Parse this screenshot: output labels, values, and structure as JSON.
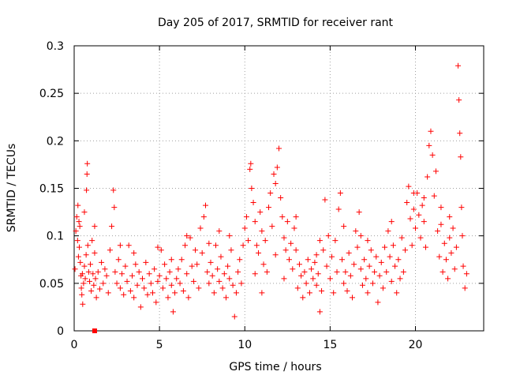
{
  "chart_data": {
    "type": "scatter",
    "title": "Day 205 of 2017, SRMTID for receiver rant",
    "xlabel": "GPS time / hours",
    "ylabel": "SRMTID / TECUs",
    "xlim": [
      0,
      24
    ],
    "ylim": [
      0,
      0.3
    ],
    "xticks": [
      0,
      5,
      10,
      15,
      20
    ],
    "xtick_labels": [
      "0",
      "5",
      "10",
      "15",
      "20"
    ],
    "yticks": [
      0,
      0.05,
      0.1,
      0.15,
      0.2,
      0.25,
      0.3
    ],
    "ytick_labels": [
      "0",
      "0.05",
      "0.1",
      "0.15",
      "0.2",
      "0.25",
      "0.3"
    ],
    "grid": true,
    "marker": "plus",
    "color": "#ff0000",
    "series": [
      {
        "name": "SRMTID",
        "points": [
          [
            0.05,
            0.065
          ],
          [
            0.1,
            0.105
          ],
          [
            0.15,
            0.12
          ],
          [
            0.2,
            0.095
          ],
          [
            0.22,
            0.132
          ],
          [
            0.25,
            0.078
          ],
          [
            0.28,
            0.115
          ],
          [
            0.3,
            0.088
          ],
          [
            0.33,
            0.11
          ],
          [
            0.36,
            0.072
          ],
          [
            0.4,
            0.058
          ],
          [
            0.42,
            0.045
          ],
          [
            0.45,
            0.038
          ],
          [
            0.48,
            0.06
          ],
          [
            0.5,
            0.028
          ],
          [
            0.55,
            0.05
          ],
          [
            0.6,
            0.068
          ],
          [
            0.65,
            0.055
          ],
          [
            0.7,
            0.08
          ],
          [
            0.72,
            0.148
          ],
          [
            0.75,
            0.165
          ],
          [
            0.77,
            0.176
          ],
          [
            0.8,
            0.09
          ],
          [
            0.85,
            0.062
          ],
          [
            0.9,
            0.052
          ],
          [
            0.95,
            0.07
          ],
          [
            1.0,
            0.042
          ],
          [
            1.05,
            0.095
          ],
          [
            1.1,
            0.06
          ],
          [
            1.15,
            0.048
          ],
          [
            1.2,
            0.082
          ],
          [
            1.25,
            0.055
          ],
          [
            1.3,
            0.035
          ],
          [
            1.4,
            0.062
          ],
          [
            1.5,
            0.044
          ],
          [
            1.6,
            0.072
          ],
          [
            1.7,
            0.05
          ],
          [
            1.8,
            0.065
          ],
          [
            1.9,
            0.058
          ],
          [
            2.0,
            0.04
          ],
          [
            2.1,
            0.085
          ],
          [
            2.2,
            0.11
          ],
          [
            2.3,
            0.148
          ],
          [
            2.35,
            0.13
          ],
          [
            2.4,
            0.062
          ],
          [
            2.5,
            0.05
          ],
          [
            2.6,
            0.075
          ],
          [
            2.7,
            0.045
          ],
          [
            2.8,
            0.06
          ],
          [
            2.9,
            0.038
          ],
          [
            3.0,
            0.068
          ],
          [
            3.1,
            0.052
          ],
          [
            3.2,
            0.09
          ],
          [
            3.3,
            0.042
          ],
          [
            3.4,
            0.058
          ],
          [
            3.5,
            0.035
          ],
          [
            3.6,
            0.07
          ],
          [
            3.7,
            0.048
          ],
          [
            3.8,
            0.062
          ],
          [
            3.9,
            0.025
          ],
          [
            4.0,
            0.055
          ],
          [
            4.1,
            0.045
          ],
          [
            4.2,
            0.072
          ],
          [
            4.3,
            0.038
          ],
          [
            4.4,
            0.06
          ],
          [
            4.5,
            0.05
          ],
          [
            4.6,
            0.04
          ],
          [
            4.7,
            0.065
          ],
          [
            4.8,
            0.03
          ],
          [
            4.9,
            0.052
          ],
          [
            5.0,
            0.058
          ],
          [
            5.1,
            0.085
          ],
          [
            5.2,
            0.045
          ],
          [
            5.3,
            0.07
          ],
          [
            5.4,
            0.055
          ],
          [
            5.5,
            0.035
          ],
          [
            5.6,
            0.062
          ],
          [
            5.7,
            0.048
          ],
          [
            5.8,
            0.02
          ],
          [
            5.9,
            0.04
          ],
          [
            6.0,
            0.055
          ],
          [
            6.1,
            0.065
          ],
          [
            6.2,
            0.05
          ],
          [
            6.3,
            0.075
          ],
          [
            6.4,
            0.042
          ],
          [
            6.5,
            0.09
          ],
          [
            6.6,
            0.06
          ],
          [
            6.7,
            0.035
          ],
          [
            6.8,
            0.098
          ],
          [
            6.9,
            0.068
          ],
          [
            7.0,
            0.052
          ],
          [
            7.1,
            0.085
          ],
          [
            7.2,
            0.07
          ],
          [
            7.3,
            0.045
          ],
          [
            7.4,
            0.108
          ],
          [
            7.5,
            0.082
          ],
          [
            7.6,
            0.12
          ],
          [
            7.7,
            0.132
          ],
          [
            7.8,
            0.062
          ],
          [
            7.9,
            0.05
          ],
          [
            8.0,
            0.072
          ],
          [
            8.1,
            0.058
          ],
          [
            8.2,
            0.04
          ],
          [
            8.3,
            0.09
          ],
          [
            8.4,
            0.065
          ],
          [
            8.5,
            0.052
          ],
          [
            8.6,
            0.078
          ],
          [
            8.7,
            0.045
          ],
          [
            8.8,
            0.06
          ],
          [
            8.9,
            0.035
          ],
          [
            9.0,
            0.068
          ],
          [
            9.1,
            0.055
          ],
          [
            9.2,
            0.085
          ],
          [
            9.3,
            0.048
          ],
          [
            9.4,
            0.015
          ],
          [
            9.5,
            0.04
          ],
          [
            9.6,
            0.062
          ],
          [
            9.7,
            0.075
          ],
          [
            9.8,
            0.05
          ],
          [
            9.9,
            0.09
          ],
          [
            10.0,
            0.108
          ],
          [
            10.1,
            0.12
          ],
          [
            10.2,
            0.095
          ],
          [
            10.3,
            0.17
          ],
          [
            10.35,
            0.176
          ],
          [
            10.4,
            0.15
          ],
          [
            10.5,
            0.135
          ],
          [
            10.6,
            0.115
          ],
          [
            10.7,
            0.09
          ],
          [
            10.8,
            0.082
          ],
          [
            10.9,
            0.125
          ],
          [
            11.0,
            0.105
          ],
          [
            11.1,
            0.07
          ],
          [
            11.2,
            0.095
          ],
          [
            11.3,
            0.062
          ],
          [
            11.4,
            0.13
          ],
          [
            11.5,
            0.145
          ],
          [
            11.6,
            0.11
          ],
          [
            11.7,
            0.165
          ],
          [
            11.8,
            0.155
          ],
          [
            11.9,
            0.172
          ],
          [
            12.0,
            0.192
          ],
          [
            12.1,
            0.14
          ],
          [
            12.2,
            0.12
          ],
          [
            12.3,
            0.098
          ],
          [
            12.4,
            0.085
          ],
          [
            12.5,
            0.115
          ],
          [
            12.6,
            0.075
          ],
          [
            12.7,
            0.092
          ],
          [
            12.8,
            0.065
          ],
          [
            12.9,
            0.108
          ],
          [
            13.0,
            0.085
          ],
          [
            13.1,
            0.045
          ],
          [
            13.2,
            0.07
          ],
          [
            13.3,
            0.058
          ],
          [
            13.4,
            0.035
          ],
          [
            13.5,
            0.062
          ],
          [
            13.6,
            0.05
          ],
          [
            13.7,
            0.075
          ],
          [
            13.8,
            0.04
          ],
          [
            13.9,
            0.065
          ],
          [
            14.0,
            0.055
          ],
          [
            14.1,
            0.072
          ],
          [
            14.2,
            0.048
          ],
          [
            14.3,
            0.06
          ],
          [
            14.4,
            0.02
          ],
          [
            14.5,
            0.042
          ],
          [
            14.6,
            0.085
          ],
          [
            14.7,
            0.138
          ],
          [
            14.8,
            0.068
          ],
          [
            14.9,
            0.1
          ],
          [
            15.0,
            0.055
          ],
          [
            15.1,
            0.078
          ],
          [
            15.2,
            0.04
          ],
          [
            15.3,
            0.095
          ],
          [
            15.4,
            0.062
          ],
          [
            15.5,
            0.128
          ],
          [
            15.6,
            0.145
          ],
          [
            15.7,
            0.075
          ],
          [
            15.8,
            0.05
          ],
          [
            15.9,
            0.062
          ],
          [
            16.0,
            0.042
          ],
          [
            16.1,
            0.082
          ],
          [
            16.2,
            0.058
          ],
          [
            16.3,
            0.035
          ],
          [
            16.4,
            0.07
          ],
          [
            16.5,
            0.105
          ],
          [
            16.6,
            0.088
          ],
          [
            16.7,
            0.125
          ],
          [
            16.8,
            0.065
          ],
          [
            16.9,
            0.048
          ],
          [
            17.0,
            0.075
          ],
          [
            17.1,
            0.055
          ],
          [
            17.2,
            0.04
          ],
          [
            17.3,
            0.068
          ],
          [
            17.4,
            0.085
          ],
          [
            17.5,
            0.05
          ],
          [
            17.6,
            0.062
          ],
          [
            17.7,
            0.078
          ],
          [
            17.8,
            0.03
          ],
          [
            17.9,
            0.058
          ],
          [
            18.0,
            0.072
          ],
          [
            18.1,
            0.045
          ],
          [
            18.2,
            0.088
          ],
          [
            18.3,
            0.062
          ],
          [
            18.4,
            0.105
          ],
          [
            18.5,
            0.078
          ],
          [
            18.6,
            0.052
          ],
          [
            18.7,
            0.09
          ],
          [
            18.8,
            0.068
          ],
          [
            18.9,
            0.04
          ],
          [
            19.0,
            0.075
          ],
          [
            19.1,
            0.055
          ],
          [
            19.2,
            0.098
          ],
          [
            19.3,
            0.062
          ],
          [
            19.4,
            0.085
          ],
          [
            19.5,
            0.135
          ],
          [
            19.6,
            0.152
          ],
          [
            19.7,
            0.118
          ],
          [
            19.8,
            0.09
          ],
          [
            19.9,
            0.128
          ],
          [
            20.0,
            0.108
          ],
          [
            20.1,
            0.145
          ],
          [
            20.2,
            0.122
          ],
          [
            20.3,
            0.098
          ],
          [
            20.4,
            0.132
          ],
          [
            20.5,
            0.115
          ],
          [
            20.6,
            0.088
          ],
          [
            20.7,
            0.162
          ],
          [
            20.8,
            0.195
          ],
          [
            20.9,
            0.21
          ],
          [
            21.0,
            0.185
          ],
          [
            21.1,
            0.142
          ],
          [
            21.2,
            0.168
          ],
          [
            21.3,
            0.105
          ],
          [
            21.4,
            0.078
          ],
          [
            21.5,
            0.112
          ],
          [
            21.6,
            0.062
          ],
          [
            21.7,
            0.092
          ],
          [
            21.8,
            0.075
          ],
          [
            21.9,
            0.055
          ],
          [
            22.0,
            0.098
          ],
          [
            22.1,
            0.082
          ],
          [
            22.2,
            0.108
          ],
          [
            22.3,
            0.065
          ],
          [
            22.4,
            0.088
          ],
          [
            22.5,
            0.279
          ],
          [
            22.55,
            0.243
          ],
          [
            22.6,
            0.208
          ],
          [
            22.65,
            0.183
          ],
          [
            22.7,
            0.13
          ],
          [
            22.75,
            0.1
          ],
          [
            22.8,
            0.068
          ],
          [
            22.9,
            0.045
          ],
          [
            23.0,
            0.06
          ],
          [
            10.6,
            0.06
          ],
          [
            11.0,
            0.04
          ],
          [
            11.8,
            0.08
          ],
          [
            12.3,
            0.055
          ],
          [
            9.1,
            0.1
          ],
          [
            7.9,
            0.092
          ],
          [
            8.5,
            0.105
          ],
          [
            3.5,
            0.082
          ],
          [
            2.7,
            0.09
          ],
          [
            1.2,
            0.11
          ],
          [
            0.6,
            0.125
          ],
          [
            6.6,
            0.1
          ],
          [
            5.7,
            0.075
          ],
          [
            4.9,
            0.088
          ],
          [
            13.0,
            0.12
          ],
          [
            14.4,
            0.095
          ],
          [
            15.8,
            0.11
          ],
          [
            17.2,
            0.095
          ],
          [
            18.6,
            0.115
          ],
          [
            19.9,
            0.145
          ],
          [
            20.5,
            0.14
          ],
          [
            21.5,
            0.13
          ],
          [
            22.0,
            0.12
          ],
          [
            16.8,
            0.1
          ],
          [
            14.2,
            0.08
          ]
        ]
      }
    ],
    "markers_square": [
      [
        1.2,
        0.0
      ]
    ]
  }
}
